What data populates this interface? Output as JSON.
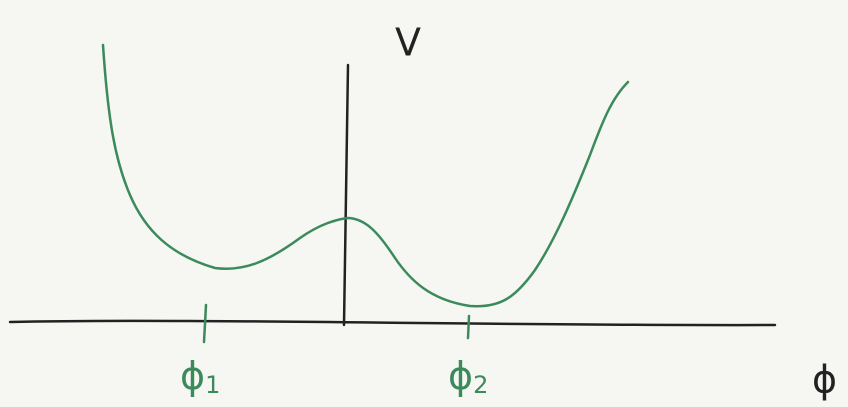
{
  "axes": {
    "y_label": "V",
    "x_label": "ϕ"
  },
  "minima": [
    {
      "symbol": "ϕ",
      "subscript": "1"
    },
    {
      "symbol": "ϕ",
      "subscript": "2"
    }
  ]
}
